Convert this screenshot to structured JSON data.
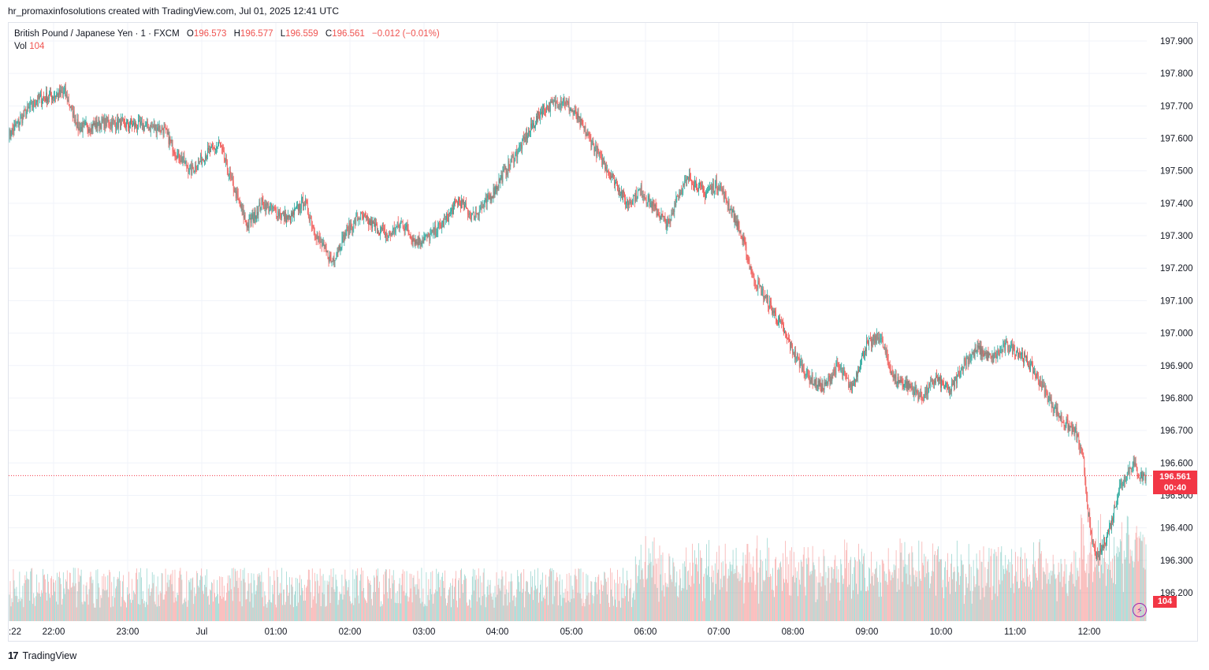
{
  "header": {
    "attribution": "hr_promaxinfosolutions created with TradingView.com, Jul 01, 2025 12:41 UTC"
  },
  "legend": {
    "symbol": "British Pound / Japanese Yen · 1 · FXCM",
    "open_label": "O",
    "open": "196.573",
    "high_label": "H",
    "high": "196.577",
    "low_label": "L",
    "low": "196.559",
    "close_label": "C",
    "close": "196.561",
    "change": "−0.012 (−0.01%)",
    "vol_label": "Vol",
    "vol": "104"
  },
  "last_price": {
    "price": "196.561",
    "countdown": "00:40",
    "volume": "104"
  },
  "footer": {
    "brand": "TradingView"
  },
  "colors": {
    "up": "#26a69a",
    "down": "#ef5350",
    "grid": "#f0f3fa",
    "last": "#f23645"
  },
  "chart_data": {
    "type": "candlestick",
    "title": "British Pound / Japanese Yen · 1 · FXCM",
    "ylim": [
      196.14,
      197.96
    ],
    "y_ticks": [
      "197.900",
      "197.800",
      "197.700",
      "197.600",
      "197.500",
      "197.400",
      "197.300",
      "197.200",
      "197.100",
      "197.000",
      "196.900",
      "196.800",
      "196.700",
      "196.600",
      "196.500",
      "196.400",
      "196.300",
      "196.200"
    ],
    "x_ticks": [
      ":22",
      "22:00",
      "23:00",
      "Jul",
      "01:00",
      "02:00",
      "03:00",
      "04:00",
      "05:00",
      "06:00",
      "07:00",
      "08:00",
      "09:00",
      "10:00",
      "11:00",
      "12:00"
    ],
    "price_path": [
      [
        0,
        197.61
      ],
      [
        4,
        197.72
      ],
      [
        8,
        197.74
      ],
      [
        10,
        197.63
      ],
      [
        14,
        197.65
      ],
      [
        18,
        197.64
      ],
      [
        22,
        197.63
      ],
      [
        24,
        197.55
      ],
      [
        26,
        197.5
      ],
      [
        28,
        197.55
      ],
      [
        30,
        197.58
      ],
      [
        32,
        197.45
      ],
      [
        34,
        197.33
      ],
      [
        36,
        197.4
      ],
      [
        40,
        197.35
      ],
      [
        42,
        197.41
      ],
      [
        44,
        197.29
      ],
      [
        46,
        197.22
      ],
      [
        48,
        197.31
      ],
      [
        50,
        197.36
      ],
      [
        54,
        197.3
      ],
      [
        56,
        197.34
      ],
      [
        58,
        197.28
      ],
      [
        60,
        197.3
      ],
      [
        62,
        197.34
      ],
      [
        64,
        197.41
      ],
      [
        66,
        197.36
      ],
      [
        68,
        197.4
      ],
      [
        71,
        197.51
      ],
      [
        73,
        197.58
      ],
      [
        76,
        197.69
      ],
      [
        79,
        197.72
      ],
      [
        81,
        197.66
      ],
      [
        84,
        197.55
      ],
      [
        86,
        197.48
      ],
      [
        88,
        197.4
      ],
      [
        90,
        197.44
      ],
      [
        92,
        197.38
      ],
      [
        94,
        197.33
      ],
      [
        95,
        197.42
      ],
      [
        97,
        197.48
      ],
      [
        99,
        197.43
      ],
      [
        101,
        197.46
      ],
      [
        102,
        197.42
      ],
      [
        104,
        197.32
      ],
      [
        106,
        197.17
      ],
      [
        108,
        197.1
      ],
      [
        110,
        197.02
      ],
      [
        112,
        196.93
      ],
      [
        114,
        196.86
      ],
      [
        116,
        196.83
      ],
      [
        118,
        196.9
      ],
      [
        120,
        196.83
      ],
      [
        122,
        196.96
      ],
      [
        124,
        196.99
      ],
      [
        126,
        196.86
      ],
      [
        128,
        196.84
      ],
      [
        130,
        196.8
      ],
      [
        132,
        196.86
      ],
      [
        134,
        196.82
      ],
      [
        136,
        196.91
      ],
      [
        138,
        196.95
      ],
      [
        140,
        196.92
      ],
      [
        142,
        196.96
      ],
      [
        144,
        196.94
      ],
      [
        146,
        196.88
      ],
      [
        148,
        196.8
      ],
      [
        150,
        196.73
      ],
      [
        152,
        196.69
      ],
      [
        153,
        196.6
      ],
      [
        154,
        196.38
      ],
      [
        155,
        196.3
      ],
      [
        157,
        196.42
      ],
      [
        158,
        196.52
      ],
      [
        160,
        196.6
      ],
      [
        161,
        196.56
      ]
    ],
    "volume_range": [
      0,
      200
    ]
  }
}
